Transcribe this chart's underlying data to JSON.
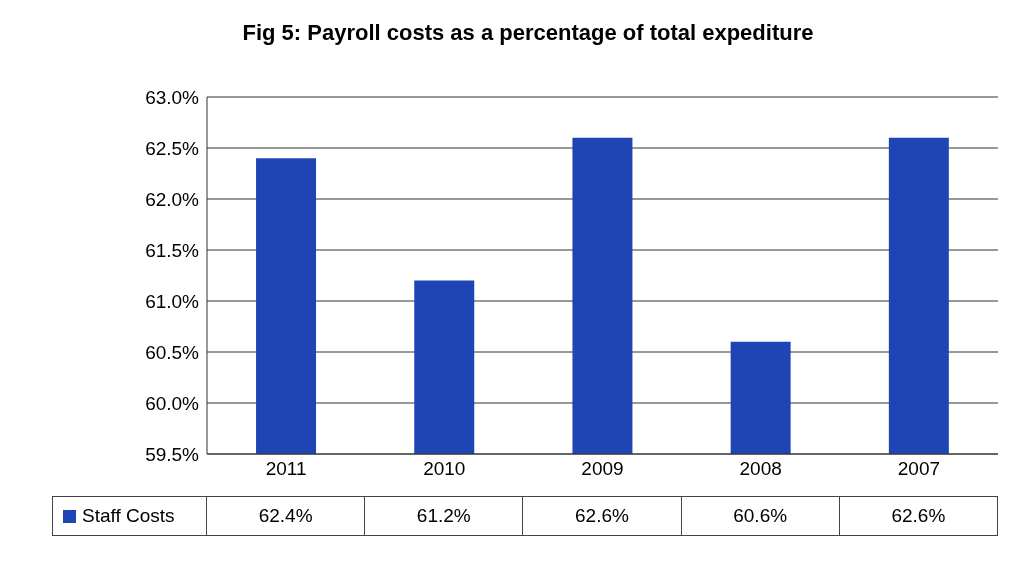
{
  "chart_data": {
    "type": "bar",
    "title": "Fig 5: Payroll costs as a percentage of total expediture",
    "categories": [
      "2011",
      "2010",
      "2009",
      "2008",
      "2007"
    ],
    "series": [
      {
        "name": "Staff Costs",
        "color": "#1f45b5",
        "values": [
          62.4,
          61.2,
          62.6,
          60.6,
          62.6
        ],
        "value_labels": [
          "62.4%",
          "61.2%",
          "62.6%",
          "60.6%",
          "62.6%"
        ]
      }
    ],
    "ylim": [
      59.5,
      63.0
    ],
    "yticks": [
      {
        "value": 59.5,
        "label": "59.5%"
      },
      {
        "value": 60.0,
        "label": "60.0%"
      },
      {
        "value": 60.5,
        "label": "60.5%"
      },
      {
        "value": 61.0,
        "label": "61.0%"
      },
      {
        "value": 61.5,
        "label": "61.5%"
      },
      {
        "value": 62.0,
        "label": "62.0%"
      },
      {
        "value": 62.5,
        "label": "62.5%"
      },
      {
        "value": 63.0,
        "label": "63.0%"
      }
    ],
    "grid": "y",
    "legend": "bottom left"
  }
}
